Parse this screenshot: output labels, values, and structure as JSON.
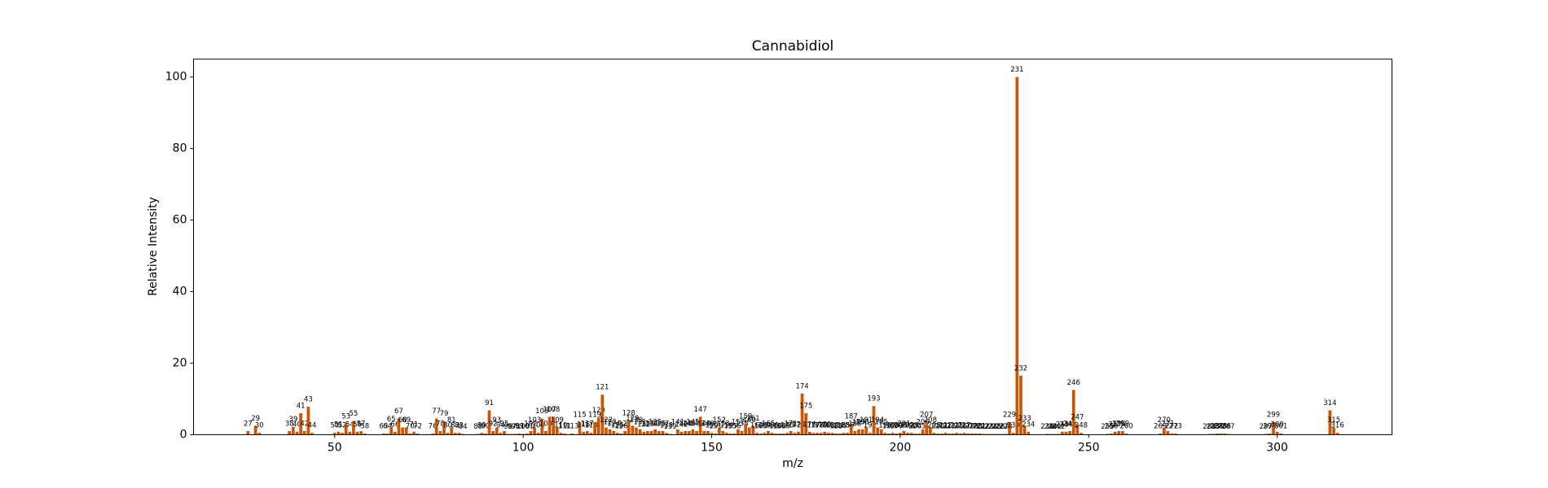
{
  "chart_data": {
    "type": "bar",
    "title": "Cannabidiol",
    "x_label": "m/z",
    "y_label": "Relative Intensity",
    "color": "#cc5500",
    "x": [
      27,
      29,
      30,
      38,
      39,
      40,
      41,
      42,
      43,
      44,
      50,
      51,
      52,
      53,
      54,
      55,
      56,
      57,
      58,
      63,
      64,
      65,
      66,
      67,
      68,
      69,
      70,
      71,
      72,
      76,
      77,
      78,
      79,
      80,
      81,
      82,
      83,
      84,
      88,
      89,
      90,
      91,
      92,
      93,
      94,
      95,
      96,
      97,
      98,
      99,
      100,
      101,
      102,
      103,
      104,
      105,
      106,
      107,
      108,
      109,
      110,
      111,
      113,
      115,
      116,
      117,
      118,
      119,
      120,
      121,
      122,
      123,
      124,
      125,
      126,
      127,
      128,
      129,
      130,
      131,
      132,
      133,
      134,
      135,
      136,
      137,
      138,
      139,
      141,
      142,
      143,
      144,
      145,
      146,
      147,
      148,
      149,
      150,
      151,
      152,
      153,
      154,
      155,
      156,
      157,
      158,
      159,
      160,
      161,
      162,
      163,
      164,
      165,
      166,
      167,
      168,
      169,
      170,
      171,
      172,
      173,
      174,
      175,
      176,
      177,
      178,
      179,
      180,
      181,
      182,
      183,
      184,
      185,
      186,
      187,
      188,
      189,
      190,
      191,
      192,
      193,
      194,
      195,
      196,
      197,
      198,
      199,
      200,
      201,
      202,
      203,
      204,
      205,
      206,
      207,
      208,
      209,
      210,
      211,
      212,
      213,
      214,
      215,
      216,
      217,
      218,
      219,
      220,
      221,
      222,
      223,
      224,
      225,
      226,
      227,
      228,
      229,
      230,
      231,
      232,
      233,
      234,
      239,
      240,
      241,
      242,
      243,
      244,
      245,
      246,
      247,
      248,
      255,
      256,
      257,
      258,
      259,
      260,
      269,
      270,
      271,
      272,
      273,
      282,
      283,
      284,
      285,
      286,
      287,
      297,
      298,
      299,
      300,
      301,
      314,
      315,
      316
    ],
    "values": [
      1,
      2.5,
      0.5,
      1,
      2.2,
      0.8,
      6,
      1,
      7.8,
      0.5,
      0.5,
      0.8,
      0.5,
      3,
      0.8,
      3.8,
      0.8,
      1,
      0.3,
      0.3,
      0.3,
      2.2,
      0.8,
      4.5,
      2,
      2,
      0.3,
      0.8,
      0.3,
      0.3,
      4.5,
      1,
      3.8,
      0.5,
      2,
      0.5,
      0.5,
      0.2,
      0.2,
      0.5,
      0.3,
      6.8,
      1,
      2,
      0.5,
      1,
      0.2,
      0.2,
      0.2,
      0.3,
      0.2,
      0.3,
      1,
      2,
      0.5,
      4.5,
      1,
      5,
      5,
      2,
      0.5,
      0.3,
      0.3,
      3.5,
      0.8,
      1,
      0.5,
      3.5,
      4.8,
      11.2,
      2,
      1.5,
      1,
      0.5,
      0.3,
      1,
      4,
      2.5,
      2,
      1.5,
      0.8,
      1,
      1,
      1.5,
      1,
      1,
      0.5,
      0.2,
      1.5,
      0.8,
      1,
      1,
      1.5,
      1,
      5,
      1,
      1,
      0.5,
      0.3,
      2,
      1,
      0.5,
      0.3,
      0.3,
      1.5,
      1,
      3,
      2,
      2.5,
      0.5,
      0.3,
      0.5,
      1,
      0.5,
      0.3,
      0.3,
      0.3,
      0.5,
      1,
      0.5,
      0.8,
      11.5,
      6,
      0.8,
      0.5,
      0.5,
      0.5,
      0.8,
      0.5,
      0.5,
      0.3,
      0.3,
      0.5,
      0.5,
      3,
      1,
      1.5,
      1.5,
      2,
      0.5,
      8,
      2,
      1.5,
      0.5,
      0.3,
      0.5,
      0.3,
      0.5,
      1,
      0.5,
      0.5,
      0.3,
      0.3,
      1.5,
      3.5,
      2,
      0.5,
      0.3,
      0.3,
      0.5,
      0.3,
      0.3,
      0.5,
      0.3,
      0.5,
      0.3,
      0.3,
      0.3,
      0.3,
      0.2,
      0.2,
      0.2,
      0.2,
      0.2,
      0.2,
      0.2,
      3.5,
      0.5,
      100,
      16.5,
      2.5,
      0.8,
      0.2,
      0.2,
      0.2,
      0.2,
      0.8,
      0.8,
      1,
      12.5,
      2.8,
      0.5,
      0.2,
      0.3,
      0.8,
      1,
      1,
      0.3,
      0.3,
      2,
      1,
      0.3,
      0.3,
      0.2,
      0.2,
      0.3,
      0.3,
      0.3,
      0.2,
      0.2,
      0.3,
      3.5,
      0.8,
      0.3,
      6.8,
      2,
      0.5
    ],
    "xlim": [
      12.55,
      330.45
    ],
    "ylim": [
      0,
      105
    ],
    "xticks": [
      50,
      100,
      150,
      200,
      250,
      300
    ],
    "yticks": [
      0,
      20,
      40,
      60,
      80,
      100
    ]
  }
}
